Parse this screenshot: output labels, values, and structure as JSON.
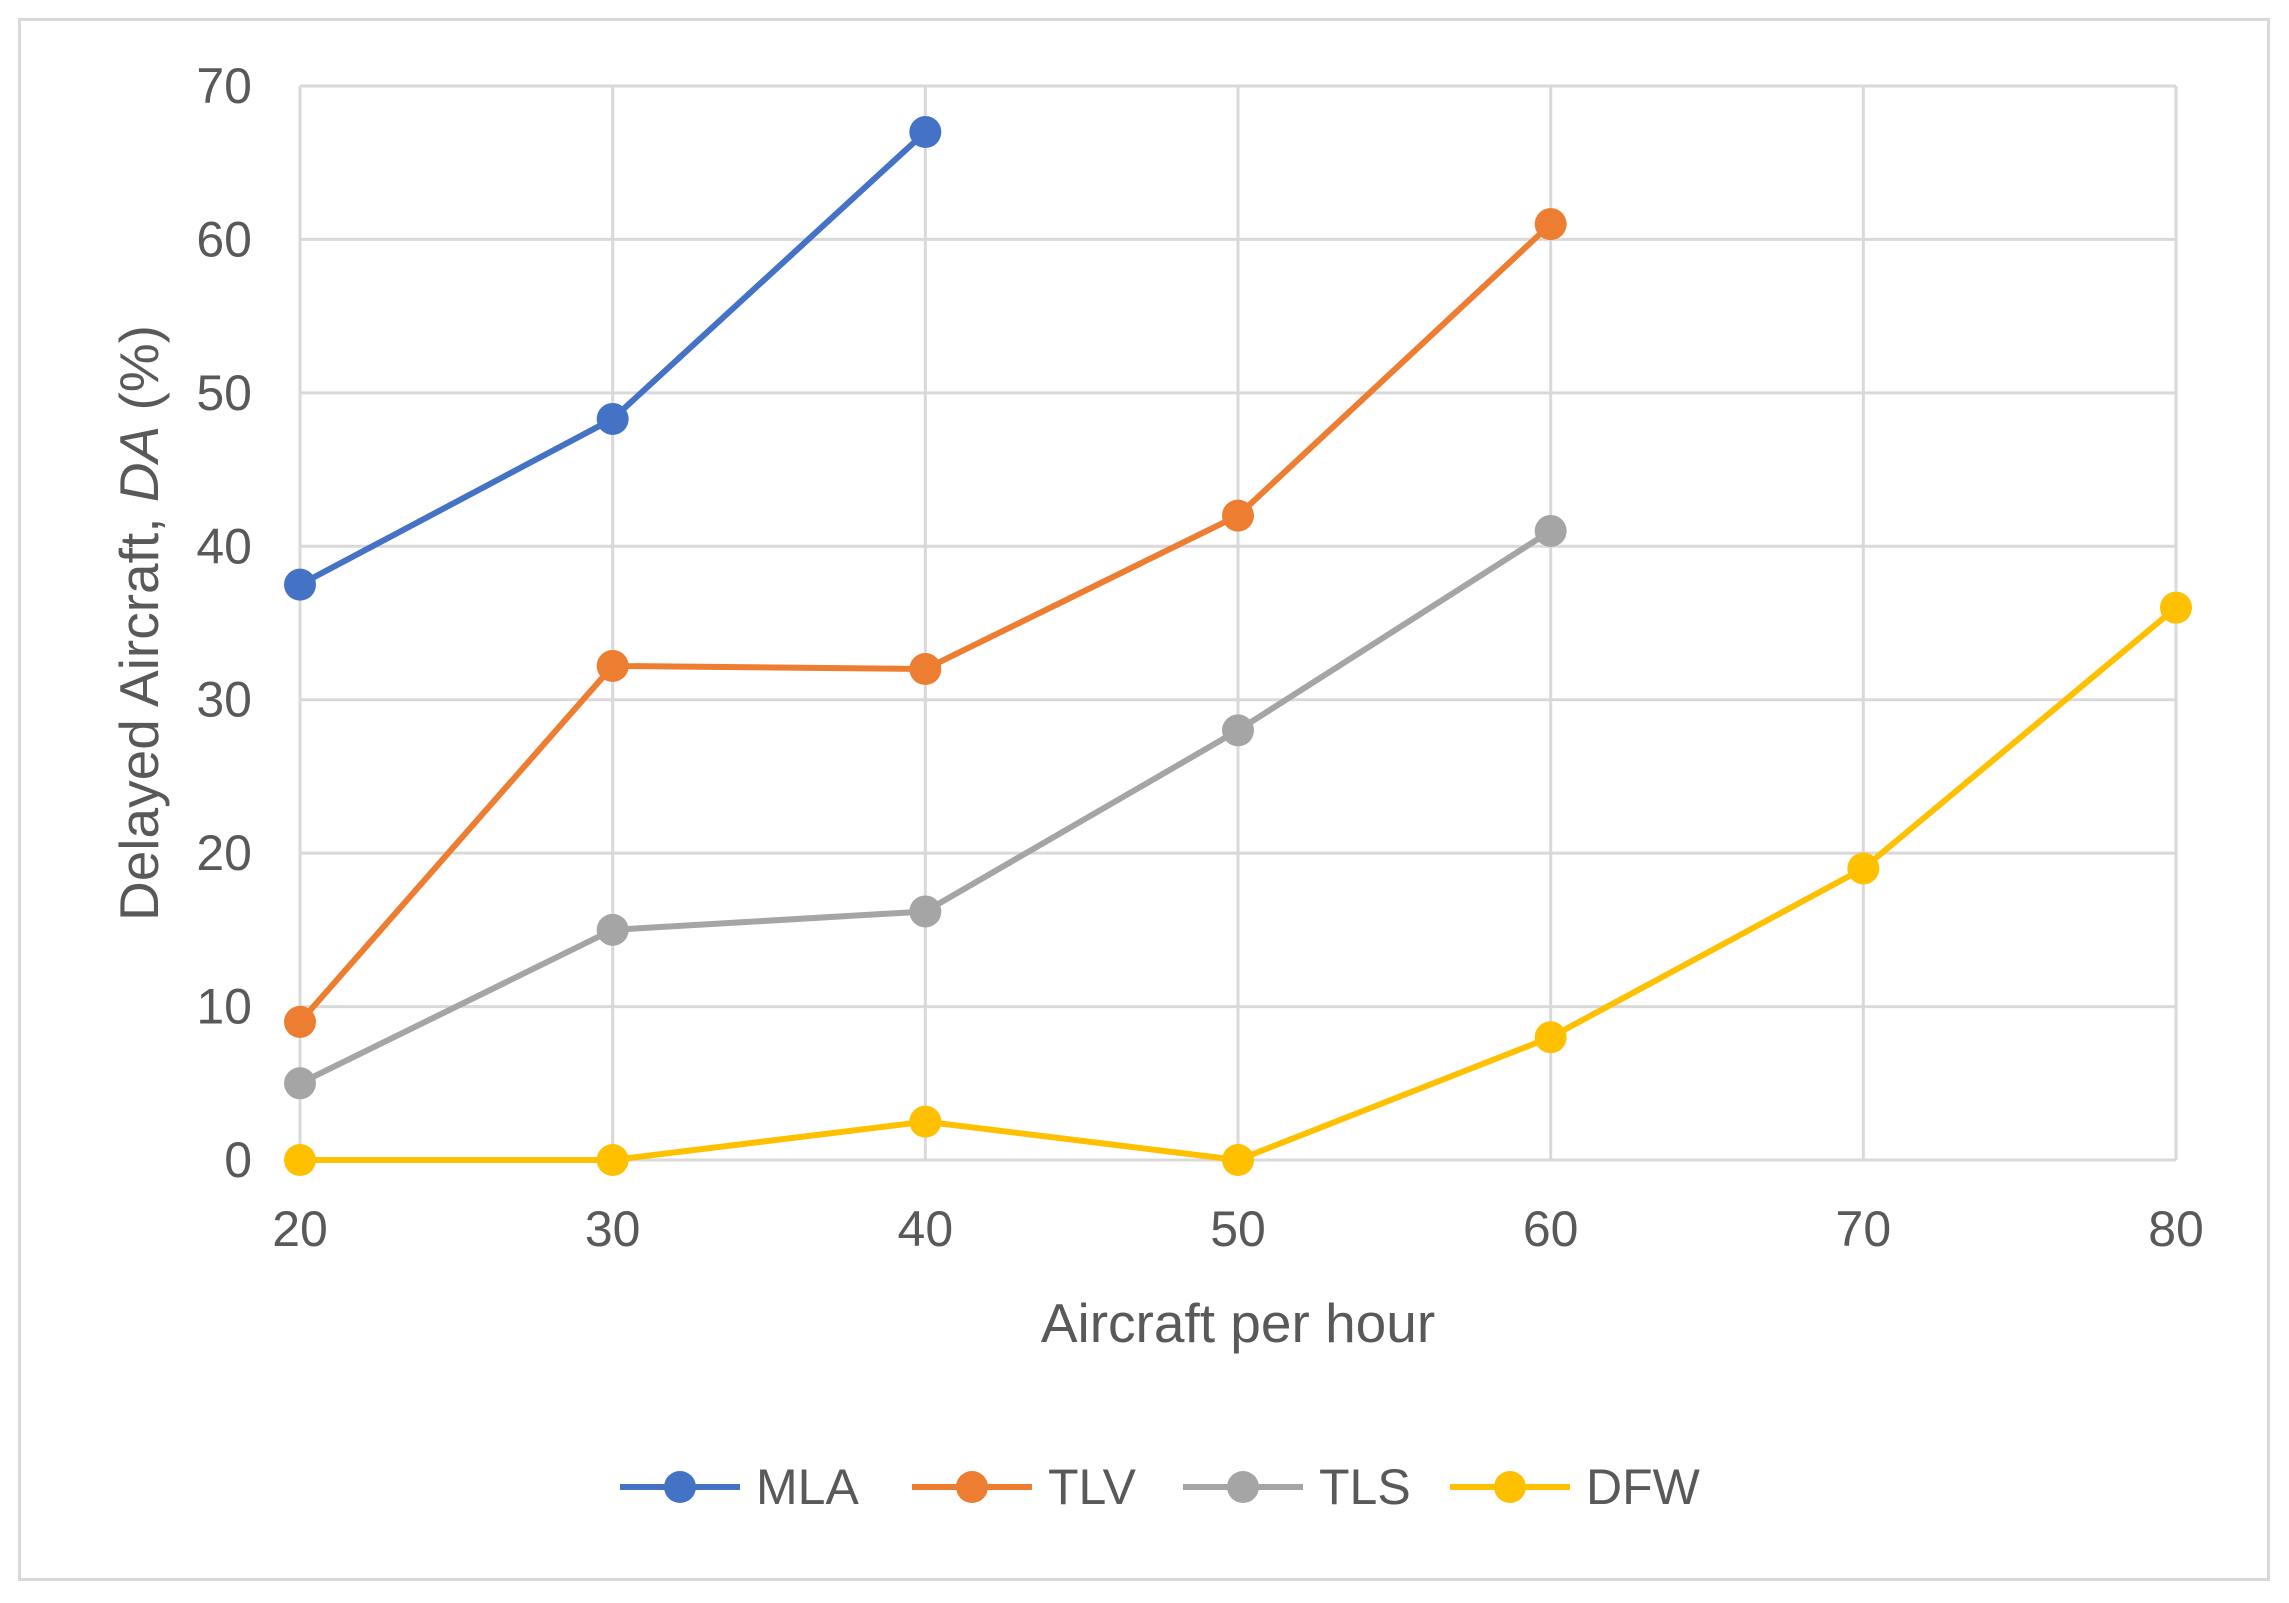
{
  "chart_data": {
    "type": "line",
    "title": "",
    "xlabel": "Aircraft per hour",
    "ylabel": {
      "prefix": "Delayed Aircraft, ",
      "italic": "DA",
      "suffix": " (%)"
    },
    "xlim": [
      20,
      80
    ],
    "ylim": [
      0,
      70
    ],
    "x_ticks": [
      20,
      30,
      40,
      50,
      60,
      70,
      80
    ],
    "y_ticks": [
      0,
      10,
      20,
      30,
      40,
      50,
      60,
      70
    ],
    "grid": true,
    "legend_position": "bottom",
    "series": [
      {
        "name": "MLA",
        "color": "#4472C4",
        "points": [
          [
            20,
            37.5
          ],
          [
            30,
            48.3
          ],
          [
            40,
            67
          ]
        ]
      },
      {
        "name": "TLV",
        "color": "#ED7D31",
        "points": [
          [
            20,
            9
          ],
          [
            30,
            32.2
          ],
          [
            40,
            32
          ],
          [
            50,
            42
          ],
          [
            60,
            61
          ]
        ]
      },
      {
        "name": "TLS",
        "color": "#A5A5A5",
        "points": [
          [
            20,
            5
          ],
          [
            30,
            15
          ],
          [
            40,
            16.2
          ],
          [
            50,
            28
          ],
          [
            60,
            41
          ]
        ]
      },
      {
        "name": "DFW",
        "color": "#FFC000",
        "points": [
          [
            20,
            0
          ],
          [
            30,
            0
          ],
          [
            40,
            2.5
          ],
          [
            50,
            0
          ],
          [
            60,
            8
          ],
          [
            70,
            19
          ],
          [
            80,
            36
          ]
        ]
      }
    ]
  }
}
